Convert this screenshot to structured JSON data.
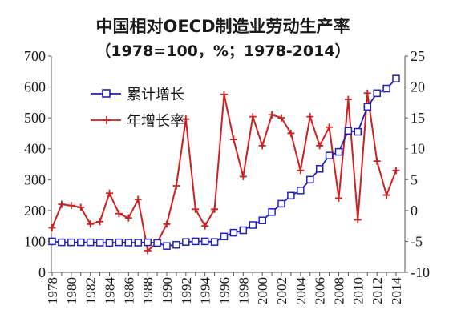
{
  "chart_data": {
    "type": "line",
    "title": "中国相对OECD制造业劳动生产率",
    "subtitle": "（1978=100，%；1978-2014）",
    "x": [
      1978,
      1979,
      1980,
      1981,
      1982,
      1983,
      1984,
      1985,
      1986,
      1987,
      1988,
      1989,
      1990,
      1991,
      1992,
      1993,
      1994,
      1995,
      1996,
      1997,
      1998,
      1999,
      2000,
      2001,
      2002,
      2003,
      2004,
      2005,
      2006,
      2007,
      2008,
      2009,
      2010,
      2011,
      2012,
      2013,
      2014
    ],
    "x_tick_labels": [
      "1978",
      "1980",
      "1982",
      "1984",
      "1986",
      "1988",
      "1990",
      "1992",
      "1994",
      "1996",
      "1998",
      "2000",
      "2002",
      "2004",
      "2006",
      "2008",
      "2010",
      "2012",
      "2014"
    ],
    "left_axis": {
      "ylim": [
        0,
        700
      ],
      "ticks": [
        "0",
        "100",
        "200",
        "300",
        "400",
        "500",
        "600",
        "700"
      ]
    },
    "right_axis": {
      "ylim": [
        -10,
        25
      ],
      "ticks": [
        "-10",
        "-5",
        "0",
        "5",
        "10",
        "15",
        "20",
        "25"
      ]
    },
    "legend_position": "top-left",
    "grid": false,
    "series": [
      {
        "name": "累计增长",
        "axis": "left",
        "color": "#1f1fbf",
        "marker": "square",
        "values": [
          100,
          97,
          97,
          97,
          97,
          96,
          95,
          97,
          96,
          96,
          97,
          95,
          85,
          89,
          98,
          100,
          100,
          98,
          116,
          128,
          136,
          153,
          168,
          195,
          222,
          248,
          265,
          300,
          335,
          378,
          390,
          458,
          455,
          536,
          580,
          595,
          627
        ]
      },
      {
        "name": "年增长率",
        "axis": "right",
        "color": "#d01f1f",
        "marker": "plus",
        "values": [
          -2.8,
          1.0,
          0.8,
          0.5,
          -2.2,
          -1.8,
          2.8,
          -0.5,
          -1.2,
          1.8,
          -6.5,
          -5.2,
          -2.2,
          4.0,
          14.8,
          0.2,
          -2.5,
          0.2,
          18.8,
          11.5,
          5.5,
          15.2,
          10.5,
          15.5,
          15.0,
          12.5,
          6.5,
          15.2,
          10.5,
          13.5,
          2.0,
          18.0,
          -1.5,
          19.0,
          8.0,
          2.5,
          6.5
        ]
      }
    ]
  }
}
